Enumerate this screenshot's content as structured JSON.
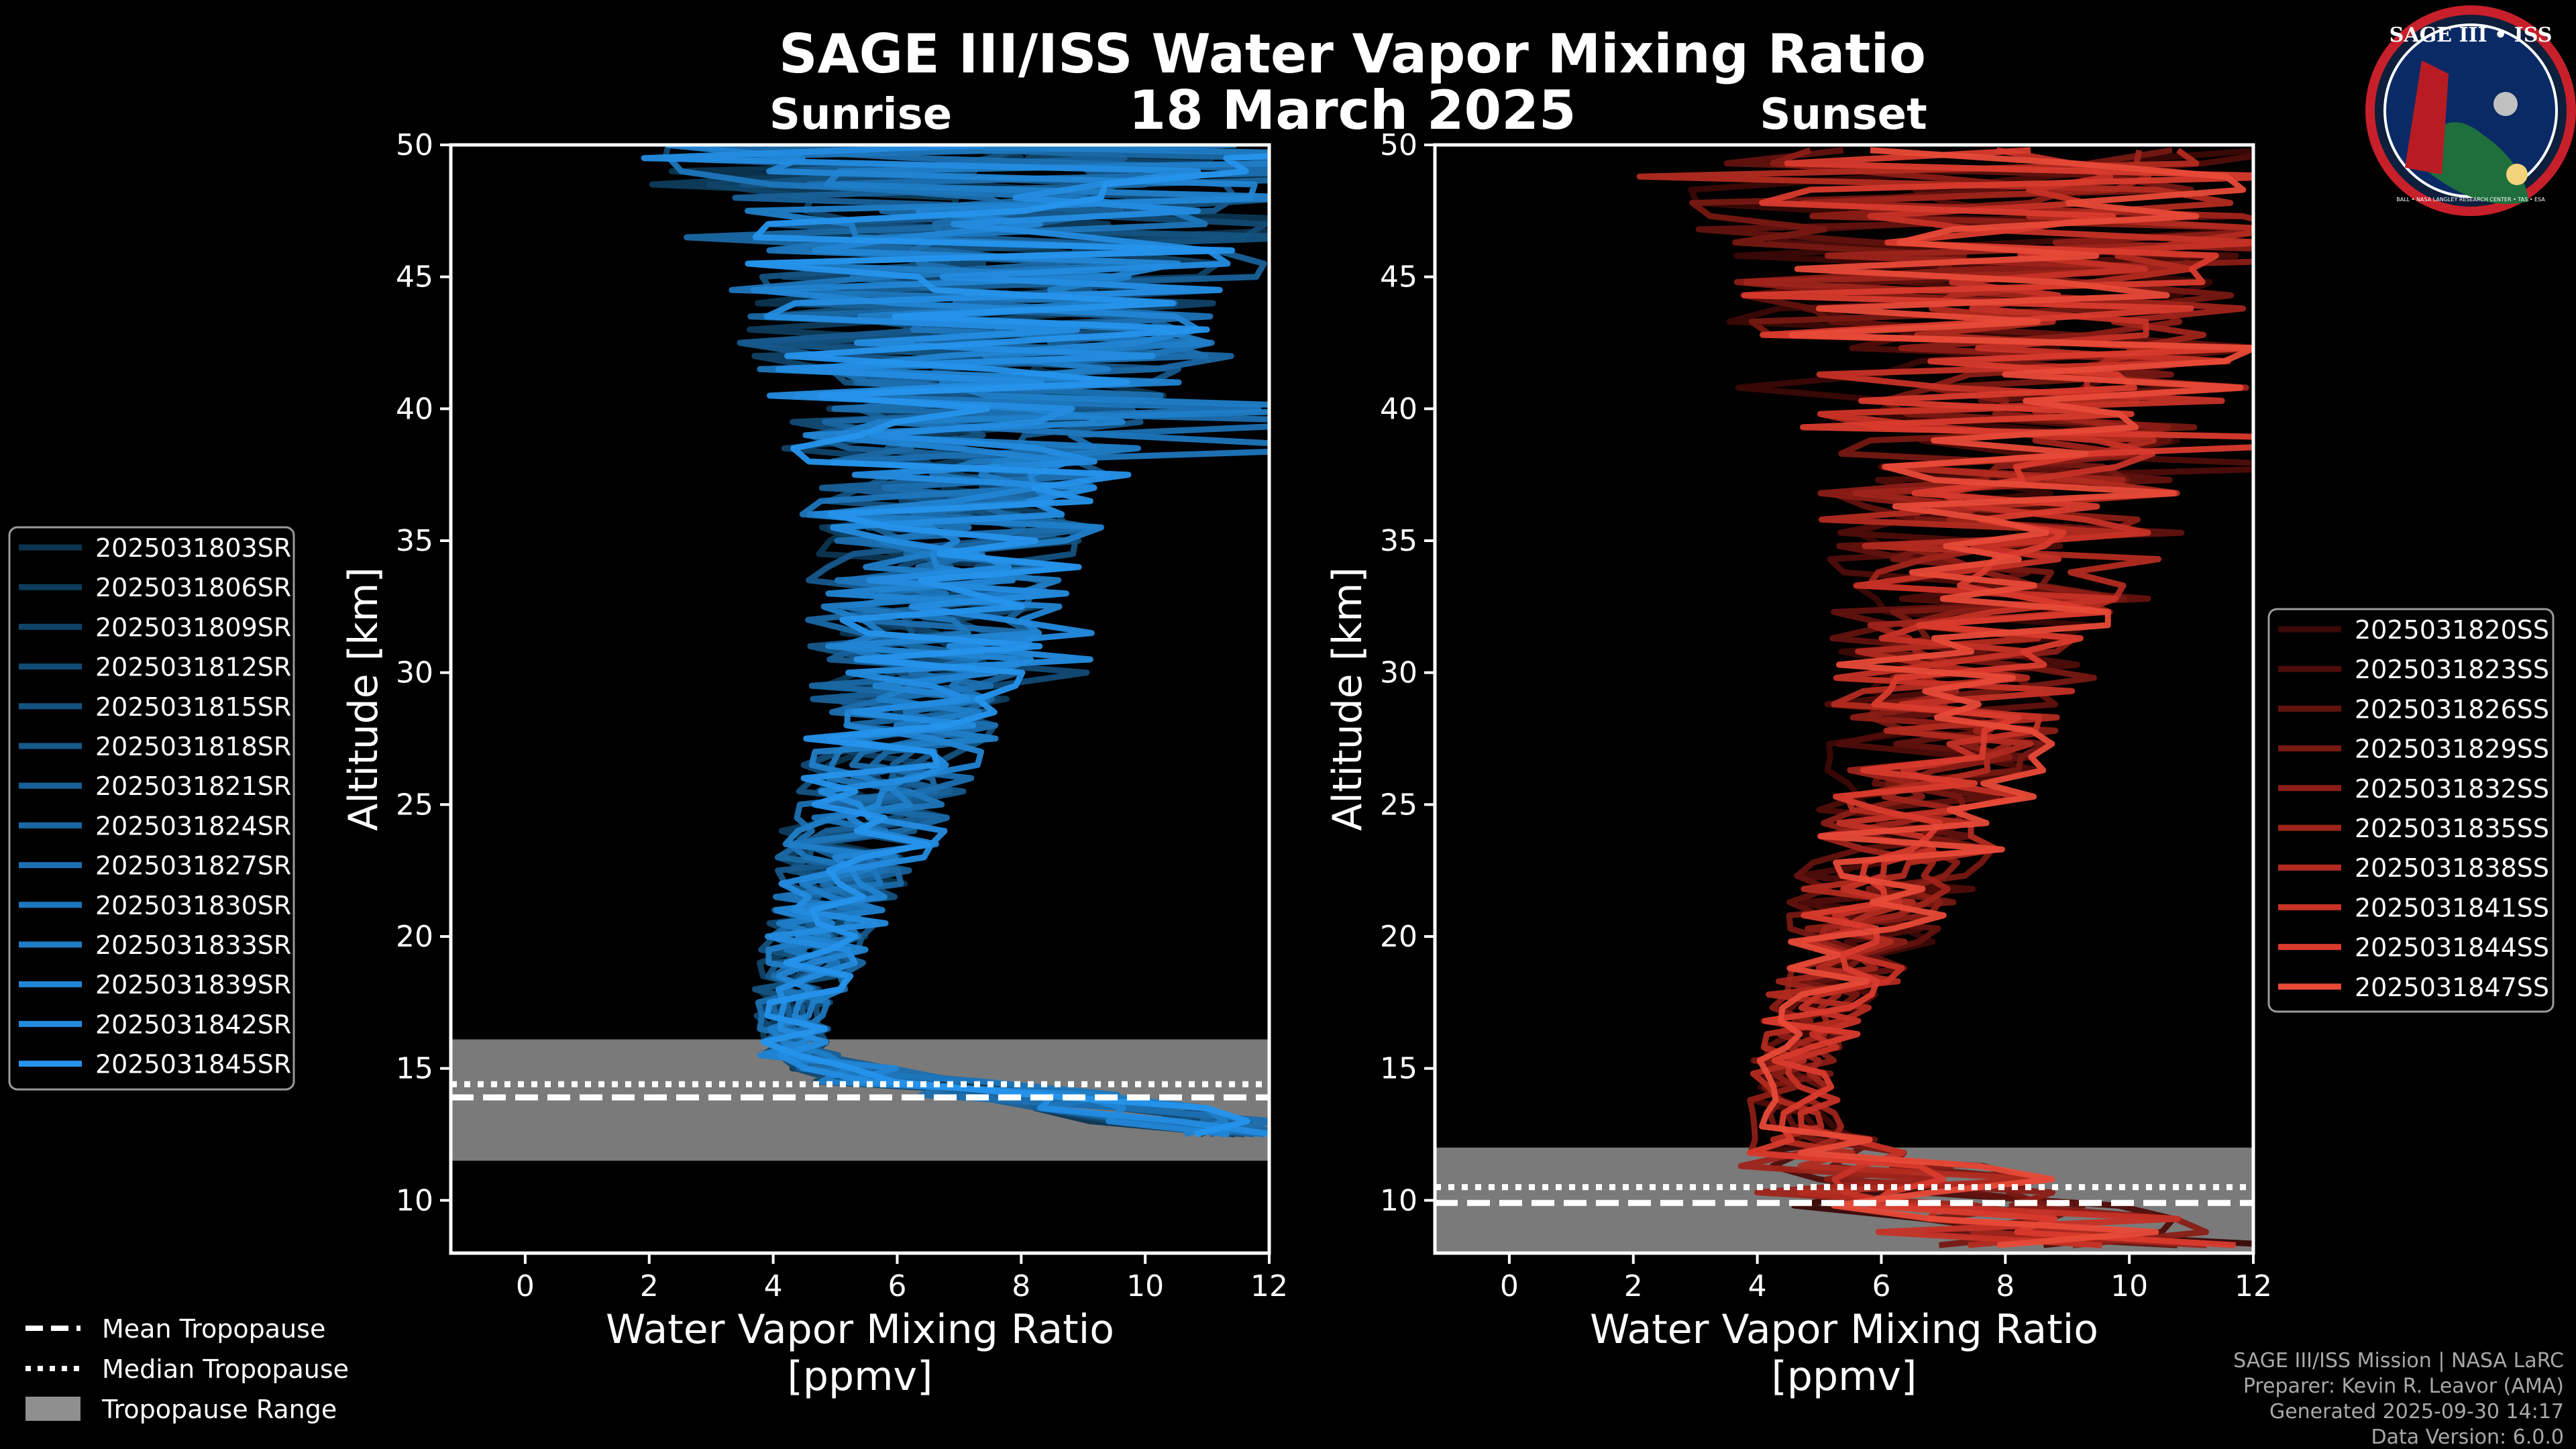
{
  "figure": {
    "title": "SAGE III/ISS Water Vapor Mixing Ratio",
    "date": "18 March 2025",
    "logo": {
      "top_text": "SAGE III • ISS",
      "ring_text": "BALL • NASA LANGLEY RESEARCH CENTER • TAS • ESA"
    },
    "credits": [
      "SAGE III/ISS Mission | NASA LaRC",
      "Preparer: Kevin R. Leavor (AMA)",
      "Generated 2025-09-30 14:17",
      "Data Version: 6.0.0"
    ],
    "colors": {
      "background": "#000000",
      "sunrise_series": [
        "#0c3550",
        "#0e3c5c",
        "#104368",
        "#124a74",
        "#145280",
        "#16598c",
        "#186098",
        "#1a68a4",
        "#1c6fb0",
        "#1e76bc",
        "#207ec8",
        "#2285d4",
        "#248ce0",
        "#2693ec"
      ],
      "sunset_series": [
        "#3a0806",
        "#4e0d0a",
        "#62120e",
        "#761812",
        "#8a1e16",
        "#9e241b",
        "#b22b20",
        "#c63226",
        "#d93b2d",
        "#e84a38"
      ],
      "tropopause_fill": "#8f8f8f"
    }
  },
  "chart_data": [
    {
      "type": "line",
      "panel": "sunrise",
      "title": "Sunrise",
      "xlabel": "Water Vapor Mixing Ratio\n[ppmv]",
      "ylabel": "Altitude [km]",
      "xlim": [
        -1.2,
        12
      ],
      "ylim": [
        8,
        50
      ],
      "xticks": [
        0,
        2,
        4,
        6,
        8,
        10,
        12
      ],
      "yticks": [
        10,
        15,
        20,
        25,
        30,
        35,
        40,
        45,
        50
      ],
      "legend_position": "left",
      "tropopause": {
        "mean": 13.9,
        "median": 14.4,
        "range": [
          11.5,
          16.1
        ]
      },
      "profile_points": [
        {
          "alt": 12.5,
          "value": 11.5,
          "spread": 1.0
        },
        {
          "alt": 13.5,
          "value": 9.5,
          "spread": 2.0
        },
        {
          "alt": 14.5,
          "value": 6.0,
          "spread": 1.5
        },
        {
          "alt": 15.5,
          "value": 4.4,
          "spread": 0.7
        },
        {
          "alt": 17.0,
          "value": 4.2,
          "spread": 0.6
        },
        {
          "alt": 19.0,
          "value": 4.6,
          "spread": 0.9
        },
        {
          "alt": 21.0,
          "value": 4.9,
          "spread": 1.0
        },
        {
          "alt": 23.0,
          "value": 5.2,
          "spread": 1.2
        },
        {
          "alt": 25.0,
          "value": 5.6,
          "spread": 1.4
        },
        {
          "alt": 28.0,
          "value": 6.0,
          "spread": 1.6
        },
        {
          "alt": 31.0,
          "value": 6.3,
          "spread": 1.9
        },
        {
          "alt": 34.0,
          "value": 6.6,
          "spread": 2.2
        },
        {
          "alt": 37.0,
          "value": 6.9,
          "spread": 2.7
        },
        {
          "alt": 40.0,
          "value": 7.0,
          "spread": 3.2
        },
        {
          "alt": 42.0,
          "value": 7.0,
          "spread": 3.8
        },
        {
          "alt": 45.0,
          "value": 7.2,
          "spread": 4.5
        },
        {
          "alt": 48.0,
          "value": 7.2,
          "spread": 5.2
        },
        {
          "alt": 50.0,
          "value": 7.2,
          "spread": 5.5
        }
      ],
      "series": [
        {
          "name": "2025031803SR"
        },
        {
          "name": "2025031806SR"
        },
        {
          "name": "2025031809SR"
        },
        {
          "name": "2025031812SR"
        },
        {
          "name": "2025031815SR"
        },
        {
          "name": "2025031818SR"
        },
        {
          "name": "2025031821SR"
        },
        {
          "name": "2025031824SR"
        },
        {
          "name": "2025031827SR"
        },
        {
          "name": "2025031830SR"
        },
        {
          "name": "2025031833SR"
        },
        {
          "name": "2025031839SR"
        },
        {
          "name": "2025031842SR"
        },
        {
          "name": "2025031845SR"
        }
      ]
    },
    {
      "type": "line",
      "panel": "sunset",
      "title": "Sunset",
      "xlabel": "Water Vapor Mixing Ratio\n[ppmv]",
      "ylabel": "Altitude [km]",
      "xlim": [
        -1.2,
        12
      ],
      "ylim": [
        8,
        50
      ],
      "xticks": [
        0,
        2,
        4,
        6,
        8,
        10,
        12
      ],
      "yticks": [
        10,
        15,
        20,
        25,
        30,
        35,
        40,
        45,
        50
      ],
      "legend_position": "right",
      "tropopause": {
        "mean": 9.9,
        "median": 10.5,
        "range": [
          8,
          12
        ]
      },
      "profile_points": [
        {
          "alt": 8.3,
          "value": 9.0,
          "spread": 3.0
        },
        {
          "alt": 9.5,
          "value": 7.0,
          "spread": 3.0
        },
        {
          "alt": 11.0,
          "value": 5.5,
          "spread": 2.5
        },
        {
          "alt": 12.5,
          "value": 4.6,
          "spread": 0.9
        },
        {
          "alt": 14.0,
          "value": 4.4,
          "spread": 0.7
        },
        {
          "alt": 16.0,
          "value": 4.6,
          "spread": 0.8
        },
        {
          "alt": 18.0,
          "value": 5.0,
          "spread": 1.0
        },
        {
          "alt": 20.0,
          "value": 5.4,
          "spread": 1.3
        },
        {
          "alt": 22.0,
          "value": 5.8,
          "spread": 1.5
        },
        {
          "alt": 25.0,
          "value": 6.3,
          "spread": 1.7
        },
        {
          "alt": 28.0,
          "value": 6.7,
          "spread": 1.9
        },
        {
          "alt": 31.0,
          "value": 7.0,
          "spread": 2.2
        },
        {
          "alt": 34.0,
          "value": 7.2,
          "spread": 2.6
        },
        {
          "alt": 37.0,
          "value": 7.3,
          "spread": 3.0
        },
        {
          "alt": 40.0,
          "value": 7.4,
          "spread": 3.6
        },
        {
          "alt": 43.0,
          "value": 7.3,
          "spread": 4.3
        },
        {
          "alt": 46.0,
          "value": 7.2,
          "spread": 5.0
        },
        {
          "alt": 50.0,
          "value": 7.0,
          "spread": 5.6
        }
      ],
      "series": [
        {
          "name": "2025031820SS"
        },
        {
          "name": "2025031823SS"
        },
        {
          "name": "2025031826SS"
        },
        {
          "name": "2025031829SS"
        },
        {
          "name": "2025031832SS"
        },
        {
          "name": "2025031835SS"
        },
        {
          "name": "2025031838SS"
        },
        {
          "name": "2025031841SS"
        },
        {
          "name": "2025031844SS"
        },
        {
          "name": "2025031847SS"
        }
      ]
    }
  ],
  "tropopause_legend": {
    "mean": "Mean Tropopause",
    "median": "Median Tropopause",
    "range": "Tropopause Range"
  }
}
